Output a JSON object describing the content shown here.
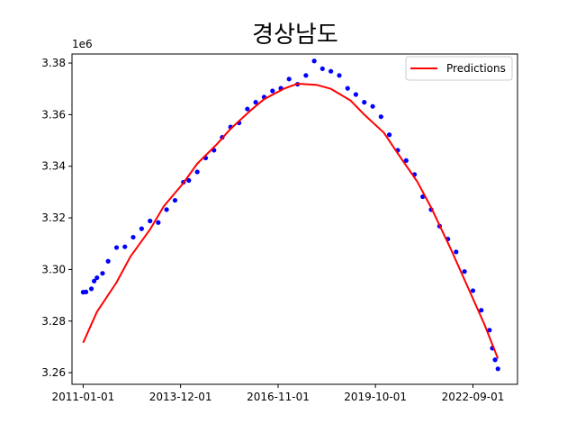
{
  "chart_data": {
    "type": "scatter",
    "title": "경상남도",
    "y_offset_label": "1e6",
    "xlabel": "",
    "ylabel": "",
    "x_tick_labels": [
      "2011-01-01",
      "2013-12-01",
      "2016-11-01",
      "2019-10-01",
      "2022-09-01"
    ],
    "y_tick_labels": [
      "3.26",
      "3.28",
      "3.30",
      "3.32",
      "3.34",
      "3.36",
      "3.38"
    ],
    "xlim": [
      "2010-09-01",
      "2024-01-01"
    ],
    "ylim": [
      3.2555,
      3.3835
    ],
    "grid": false,
    "legend_position": "top-right",
    "series": [
      {
        "name": "",
        "kind": "scatter",
        "color": "#0000ff",
        "x": [
          "2011-01-01",
          "2011-02-01",
          "2011-04-01",
          "2011-05-01",
          "2011-06-01",
          "2011-08-01",
          "2011-10-01",
          "2012-01-01",
          "2012-04-01",
          "2012-07-01",
          "2012-10-01",
          "2013-01-01",
          "2013-04-01",
          "2013-07-01",
          "2013-10-01",
          "2014-01-01",
          "2014-03-01",
          "2014-06-01",
          "2014-09-01",
          "2014-12-01",
          "2015-03-01",
          "2015-06-01",
          "2015-09-01",
          "2015-12-01",
          "2016-03-01",
          "2016-06-01",
          "2016-09-01",
          "2016-12-01",
          "2017-03-01",
          "2017-06-01",
          "2017-09-01",
          "2017-12-01",
          "2018-03-01",
          "2018-06-01",
          "2018-09-01",
          "2018-12-01",
          "2019-03-01",
          "2019-06-01",
          "2019-09-01",
          "2019-12-01",
          "2020-03-01",
          "2020-06-01",
          "2020-09-01",
          "2020-12-01",
          "2021-03-01",
          "2021-06-01",
          "2021-09-01",
          "2021-12-01",
          "2022-03-01",
          "2022-06-01",
          "2022-09-01",
          "2022-12-01",
          "2023-03-01",
          "2023-04-01",
          "2023-05-01",
          "2023-06-01"
        ],
        "y": [
          3.2912,
          3.2913,
          3.2925,
          3.2955,
          3.2968,
          3.2985,
          3.3032,
          3.3085,
          3.3088,
          3.3125,
          3.3158,
          3.3188,
          3.3182,
          3.3232,
          3.3268,
          3.3338,
          3.3345,
          3.3378,
          3.3432,
          3.3462,
          3.3512,
          3.3552,
          3.3568,
          3.3622,
          3.3648,
          3.3668,
          3.3692,
          3.3702,
          3.3738,
          3.3718,
          3.3752,
          3.3808,
          3.3778,
          3.3768,
          3.3752,
          3.3702,
          3.3678,
          3.3648,
          3.3632,
          3.3592,
          3.3522,
          3.3462,
          3.3422,
          3.3368,
          3.3282,
          3.3232,
          3.3168,
          3.3118,
          3.3068,
          3.2992,
          3.2918,
          3.2842,
          3.2765,
          3.2695,
          3.265,
          3.2615
        ]
      },
      {
        "name": "Predictions",
        "kind": "line",
        "color": "#ff0000",
        "x": [
          "2011-01-01",
          "2011-06-01",
          "2012-01-01",
          "2012-06-01",
          "2013-01-01",
          "2013-06-01",
          "2014-01-01",
          "2014-06-01",
          "2015-01-01",
          "2015-06-01",
          "2016-01-01",
          "2016-06-01",
          "2017-01-01",
          "2017-06-01",
          "2018-01-01",
          "2018-06-01",
          "2019-01-01",
          "2019-06-01",
          "2020-01-01",
          "2020-06-01",
          "2021-01-01",
          "2021-06-01",
          "2022-01-01",
          "2022-06-01",
          "2023-01-01",
          "2023-06-01"
        ],
        "y": [
          3.2716,
          3.2836,
          3.295,
          3.305,
          3.3155,
          3.3245,
          3.3335,
          3.341,
          3.3485,
          3.3545,
          3.3615,
          3.366,
          3.37,
          3.372,
          3.3715,
          3.37,
          3.3655,
          3.36,
          3.353,
          3.345,
          3.334,
          3.324,
          3.308,
          3.296,
          3.279,
          3.2655
        ]
      }
    ]
  }
}
